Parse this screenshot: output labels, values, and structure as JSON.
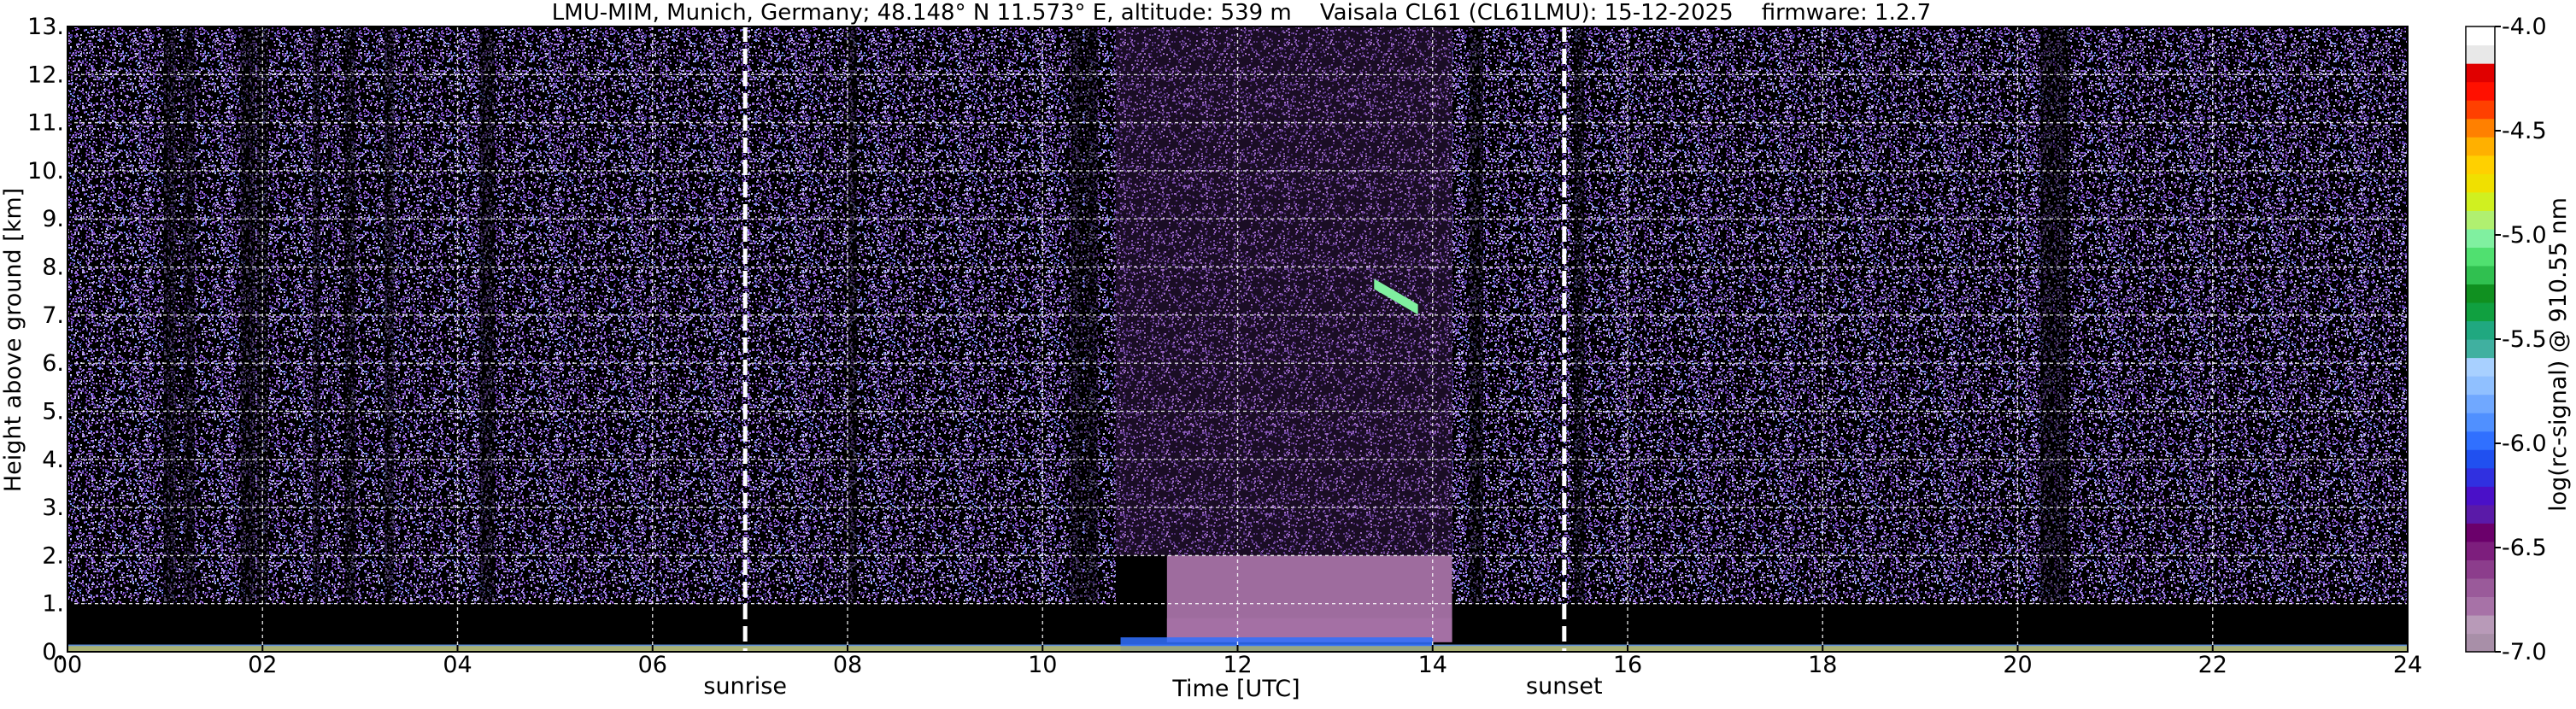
{
  "chart_data": {
    "type": "heatmap",
    "title": "LMU-MIM, Munich, Germany; 48.148° N 11.573° E, altitude: 539 m    Vaisala CL61 (CL61LMU): 15-12-2025    firmware: 1.2.7",
    "xlabel": "Time [UTC]",
    "ylabel": "Height above ground [km]",
    "xlim": [
      0,
      24
    ],
    "ylim": [
      0,
      13
    ],
    "x_ticks": [
      0,
      2,
      4,
      6,
      8,
      10,
      12,
      14,
      16,
      18,
      20,
      22,
      24
    ],
    "x_tick_labels": [
      "00",
      "02",
      "04",
      "06",
      "08",
      "10",
      "12",
      "14",
      "16",
      "18",
      "20",
      "22",
      "24"
    ],
    "y_ticks": [
      0,
      1,
      2,
      3,
      4,
      5,
      6,
      7,
      8,
      9,
      10,
      11,
      12,
      13
    ],
    "y_tick_labels": [
      "0.",
      "1.",
      "2.",
      "3.",
      "4.",
      "5.",
      "6.",
      "7.",
      "8.",
      "9.",
      "10.",
      "11.",
      "12.",
      "13."
    ],
    "grid": true,
    "events": [
      {
        "label": "sunrise",
        "time": 6.95
      },
      {
        "label": "sunset",
        "time": 15.35
      }
    ],
    "colorbar": {
      "label": "log(rc-signal) @ 910.55 nm",
      "range": [
        -7.0,
        -4.0
      ],
      "ticks": [
        -7.0,
        -6.5,
        -6.0,
        -5.5,
        -5.0,
        -4.5,
        -4.0
      ],
      "tick_labels": [
        "-7.0",
        "-6.5",
        "-6.0",
        "-5.5",
        "-5.0",
        "-4.5",
        "-4.0"
      ],
      "colors": [
        "#a88fa8",
        "#b89ab8",
        "#a772a7",
        "#9a5a9a",
        "#8c3d8c",
        "#7d1e7d",
        "#6b006b",
        "#5a1aa8",
        "#4a10c8",
        "#3030e0",
        "#2050f0",
        "#3070ff",
        "#5090ff",
        "#70a8ff",
        "#90c0ff",
        "#a8d0ff",
        "#40b0a0",
        "#20a880",
        "#10a040",
        "#109020",
        "#30c050",
        "#50e070",
        "#80f0a0",
        "#b0f070",
        "#d0f020",
        "#f0e000",
        "#ffd000",
        "#ffb000",
        "#ff8000",
        "#ff4000",
        "#ff1000",
        "#e00000",
        "#e8e8e8",
        "#ffffff"
      ]
    },
    "regimes": [
      {
        "start": 0,
        "end": 10.75,
        "value_aloft": -5.9,
        "value_boundary": -6.4,
        "noise_floor_km": 1.0
      },
      {
        "start": 10.75,
        "end": 14.2,
        "value_aloft": -6.2,
        "value_boundary": -6.8,
        "noise_floor_km": 2.0
      },
      {
        "start": 14.2,
        "end": 24,
        "value_aloft": -5.9,
        "value_boundary": -6.4,
        "noise_floor_km": 1.0
      }
    ],
    "dark_columns_hours": [
      1.05,
      1.25,
      1.85,
      2.0,
      2.55,
      2.9,
      3.3,
      4.3,
      8.05,
      10.35,
      10.5,
      14.45,
      15.5,
      20.3,
      20.45
    ],
    "cloud_features": [
      {
        "time_start": 13.4,
        "time_end": 13.85,
        "height_km": 7.4,
        "value": -5.0
      }
    ],
    "surface_layer": [
      {
        "start": 0,
        "end": 24,
        "height_km": 0.15,
        "value": -5.8
      },
      {
        "start": 10.8,
        "end": 14.0,
        "height_km": 0.3,
        "value": -6.0
      }
    ]
  }
}
